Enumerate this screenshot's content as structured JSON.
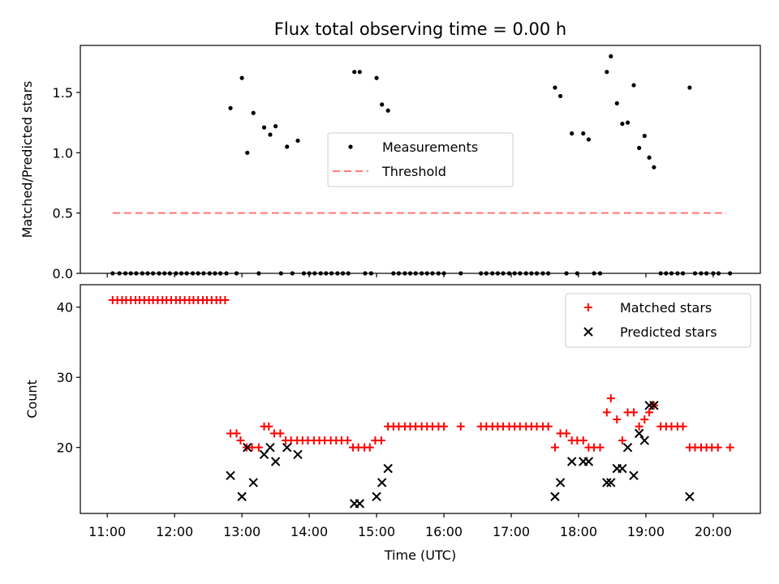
{
  "title": "Flux total observing time = 0.00 h",
  "chart_data": [
    {
      "type": "scatter",
      "ylabel": "Matched/Predicted stars",
      "xlabel": "",
      "xlim": [
        10.6,
        20.7
      ],
      "ylim": [
        0,
        1.89
      ],
      "yticks": [
        0.0,
        0.5,
        1.0,
        1.5
      ],
      "ytick_labels": [
        "0.0",
        "0.5",
        "1.0",
        "1.5"
      ],
      "legend_placement": "center",
      "series": [
        {
          "name": "Measurements",
          "marker": "dot",
          "color": "#000000",
          "x": [
            11.08,
            11.18,
            11.27,
            11.35,
            11.43,
            11.52,
            11.6,
            11.68,
            11.77,
            11.85,
            11.93,
            12.02,
            12.1,
            12.18,
            12.27,
            12.35,
            12.43,
            12.52,
            12.6,
            12.68,
            12.77,
            12.83,
            12.92,
            13.0,
            13.08,
            13.17,
            13.25,
            13.33,
            13.42,
            13.5,
            13.58,
            13.67,
            13.75,
            13.83,
            13.92,
            14.0,
            14.08,
            14.17,
            14.25,
            14.33,
            14.42,
            14.5,
            14.58,
            14.67,
            14.75,
            14.83,
            14.92,
            15.0,
            15.08,
            15.17,
            15.25,
            15.33,
            15.42,
            15.5,
            15.58,
            15.67,
            15.75,
            15.83,
            15.92,
            16.0,
            16.25,
            16.55,
            16.63,
            16.72,
            16.8,
            16.88,
            16.97,
            17.05,
            17.13,
            17.22,
            17.3,
            17.38,
            17.47,
            17.55,
            17.65,
            17.73,
            17.82,
            17.9,
            17.98,
            18.07,
            18.15,
            18.23,
            18.32,
            18.42,
            18.48,
            18.57,
            18.65,
            18.73,
            18.82,
            18.9,
            18.98,
            19.05,
            19.12,
            19.22,
            19.3,
            19.38,
            19.47,
            19.55,
            19.65,
            19.73,
            19.82,
            19.9,
            20.0,
            20.08,
            20.25
          ],
          "y": [
            0,
            0,
            0,
            0,
            0,
            0,
            0,
            0,
            0,
            0,
            0,
            0,
            0,
            0,
            0,
            0,
            0,
            0,
            0,
            0,
            0,
            1.37,
            0,
            1.62,
            1.0,
            1.33,
            0,
            1.21,
            1.15,
            1.22,
            0,
            1.05,
            0,
            1.1,
            0,
            0,
            0,
            0,
            0,
            0,
            0,
            0,
            0,
            1.67,
            1.67,
            0,
            0,
            1.62,
            1.4,
            1.35,
            0,
            0,
            0,
            0,
            0,
            0,
            0,
            0,
            0,
            0,
            0,
            0,
            0,
            0,
            0,
            0,
            0,
            0,
            0,
            0,
            0,
            0,
            0,
            0,
            1.54,
            1.47,
            0,
            1.16,
            0,
            1.16,
            1.11,
            0,
            0,
            1.67,
            1.8,
            1.41,
            1.24,
            1.25,
            1.56,
            1.04,
            1.14,
            0.96,
            0.88,
            0,
            0,
            0,
            0,
            0,
            1.54,
            0,
            0,
            0,
            0,
            0,
            0
          ]
        },
        {
          "name": "Threshold",
          "marker": "dashed-line",
          "color": "#ff8080",
          "x": [
            11.08,
            20.2
          ],
          "y": [
            0.5,
            0.5
          ]
        }
      ]
    },
    {
      "type": "scatter",
      "ylabel": "Count",
      "xlabel": "Time (UTC)",
      "xlim": [
        10.6,
        20.7
      ],
      "ylim": [
        10.6,
        43.2
      ],
      "yticks": [
        20,
        30,
        40
      ],
      "ytick_labels": [
        "20",
        "30",
        "40"
      ],
      "xticks": [
        11,
        12,
        13,
        14,
        15,
        16,
        17,
        18,
        19,
        20
      ],
      "xtick_labels": [
        "11:00",
        "12:00",
        "13:00",
        "14:00",
        "15:00",
        "16:00",
        "17:00",
        "18:00",
        "19:00",
        "20:00"
      ],
      "legend_placement": "top-right",
      "series": [
        {
          "name": "Matched stars",
          "marker": "plus",
          "color": "#ff0000",
          "x": [
            11.08,
            11.15,
            11.22,
            11.28,
            11.35,
            11.42,
            11.48,
            11.55,
            11.62,
            11.68,
            11.75,
            11.82,
            11.88,
            11.95,
            12.02,
            12.08,
            12.15,
            12.22,
            12.28,
            12.35,
            12.42,
            12.48,
            12.55,
            12.62,
            12.68,
            12.75,
            12.83,
            12.92,
            12.98,
            13.07,
            13.15,
            13.25,
            13.33,
            13.4,
            13.48,
            13.57,
            13.65,
            13.73,
            13.82,
            13.9,
            13.98,
            14.07,
            14.15,
            14.23,
            14.32,
            14.4,
            14.48,
            14.57,
            14.65,
            14.73,
            14.82,
            14.9,
            14.98,
            15.07,
            15.17,
            15.25,
            15.33,
            15.42,
            15.5,
            15.58,
            15.67,
            15.75,
            15.83,
            15.92,
            16.0,
            16.25,
            16.55,
            16.63,
            16.72,
            16.8,
            16.88,
            16.97,
            17.05,
            17.13,
            17.22,
            17.3,
            17.38,
            17.47,
            17.55,
            17.65,
            17.73,
            17.82,
            17.9,
            17.98,
            18.07,
            18.15,
            18.23,
            18.32,
            18.42,
            18.48,
            18.57,
            18.65,
            18.73,
            18.82,
            18.9,
            18.98,
            19.05,
            19.12,
            19.22,
            19.3,
            19.38,
            19.47,
            19.55,
            19.65,
            19.73,
            19.82,
            19.9,
            19.98,
            20.07,
            20.25
          ],
          "y": [
            41,
            41,
            41,
            41,
            41,
            41,
            41,
            41,
            41,
            41,
            41,
            41,
            41,
            41,
            41,
            41,
            41,
            41,
            41,
            41,
            41,
            41,
            41,
            41,
            41,
            41,
            22,
            22,
            21,
            20,
            20,
            20,
            23,
            23,
            22,
            22,
            21,
            21,
            21,
            21,
            21,
            21,
            21,
            21,
            21,
            21,
            21,
            21,
            20,
            20,
            20,
            20,
            21,
            21,
            23,
            23,
            23,
            23,
            23,
            23,
            23,
            23,
            23,
            23,
            23,
            23,
            23,
            23,
            23,
            23,
            23,
            23,
            23,
            23,
            23,
            23,
            23,
            23,
            23,
            20,
            22,
            22,
            21,
            21,
            21,
            20,
            20,
            20,
            25,
            27,
            24,
            21,
            25,
            25,
            23,
            24,
            25,
            26,
            23,
            23,
            23,
            23,
            23,
            20,
            20,
            20,
            20,
            20,
            20,
            20
          ]
        },
        {
          "name": "Predicted stars",
          "marker": "x",
          "color": "#000000",
          "x": [
            12.83,
            13.0,
            13.08,
            13.17,
            13.33,
            13.42,
            13.5,
            13.67,
            13.83,
            14.67,
            14.75,
            15.0,
            15.08,
            15.17,
            17.65,
            17.73,
            17.9,
            18.07,
            18.15,
            18.42,
            18.48,
            18.57,
            18.65,
            18.73,
            18.82,
            18.9,
            18.98,
            19.05,
            19.12,
            19.65
          ],
          "y": [
            16,
            13,
            20,
            15,
            19,
            20,
            18,
            20,
            19,
            12,
            12,
            13,
            15,
            17,
            13,
            15,
            18,
            18,
            18,
            15,
            15,
            17,
            17,
            20,
            16,
            22,
            21,
            26,
            26,
            13
          ]
        }
      ]
    }
  ]
}
